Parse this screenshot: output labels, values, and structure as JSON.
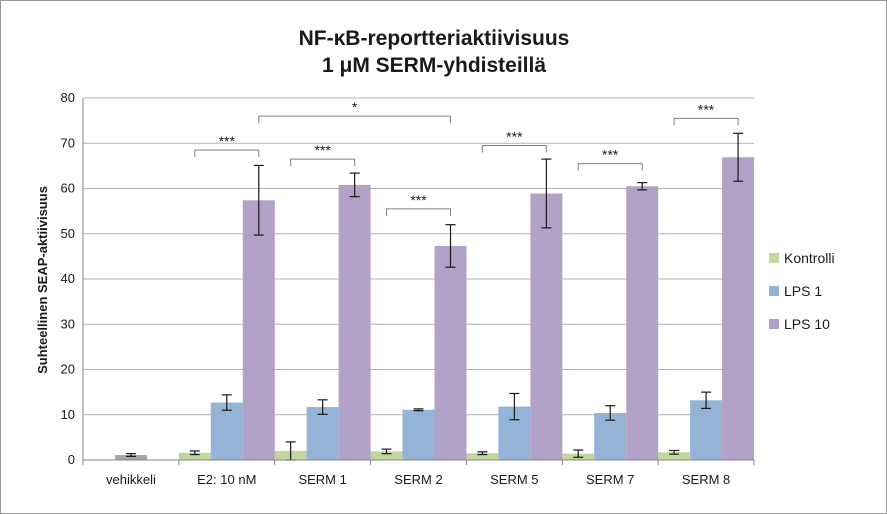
{
  "chart_data": {
    "type": "bar",
    "title": "NF-κB-reportteriaktiivisuus",
    "subtitle": "1 μM SERM-yhdisteillä",
    "ylabel": "Suhteellinen SEAP-aktiivisuus",
    "xlabel": "",
    "ylim": [
      0,
      80
    ],
    "yticks": [
      0,
      10,
      20,
      30,
      40,
      50,
      60,
      70,
      80
    ],
    "grid": true,
    "legend_position": "right",
    "categories": [
      "vehikkeli",
      "E2: 10 nM",
      "SERM 1",
      "SERM 2",
      "SERM 5",
      "SERM 7",
      "SERM 8"
    ],
    "series": [
      {
        "name": "Kontrolli",
        "color": "#c3d69b",
        "values": [
          1.1,
          1.6,
          2.0,
          1.9,
          1.5,
          1.4,
          1.7
        ],
        "errors": [
          0.3,
          0.4,
          2.0,
          0.5,
          0.3,
          0.8,
          0.4
        ]
      },
      {
        "name": "LPS 1",
        "color": "#95b3d7",
        "values": [
          null,
          12.7,
          11.7,
          11.1,
          11.8,
          10.4,
          13.2
        ],
        "errors": [
          null,
          1.7,
          1.6,
          0.2,
          2.9,
          1.6,
          1.8
        ]
      },
      {
        "name": "LPS 10",
        "color": "#b3a2c7",
        "values": [
          null,
          57.4,
          60.8,
          47.3,
          58.9,
          60.5,
          66.9
        ],
        "errors": [
          null,
          7.7,
          2.6,
          4.7,
          7.6,
          0.8,
          5.3
        ]
      }
    ],
    "vehicle_bar_color": "#a6a6a6",
    "significance": [
      {
        "label": "***",
        "from_category": 1,
        "from_series": 0,
        "to_category": 1,
        "to_series": 2,
        "level": 68.5
      },
      {
        "label": "***",
        "from_category": 2,
        "from_series": 0,
        "to_category": 2,
        "to_series": 2,
        "level": 66.5
      },
      {
        "label": "***",
        "from_category": 3,
        "from_series": 0,
        "to_category": 3,
        "to_series": 2,
        "level": 55.5
      },
      {
        "label": "***",
        "from_category": 4,
        "from_series": 0,
        "to_category": 4,
        "to_series": 2,
        "level": 69.5
      },
      {
        "label": "***",
        "from_category": 5,
        "from_series": 0,
        "to_category": 5,
        "to_series": 2,
        "level": 65.5
      },
      {
        "label": "***",
        "from_category": 6,
        "from_series": 0,
        "to_category": 6,
        "to_series": 2,
        "level": 75.5
      },
      {
        "label": "*",
        "from_category": 1,
        "from_series": 2,
        "to_category": 3,
        "to_series": 2,
        "level": 76
      }
    ]
  }
}
